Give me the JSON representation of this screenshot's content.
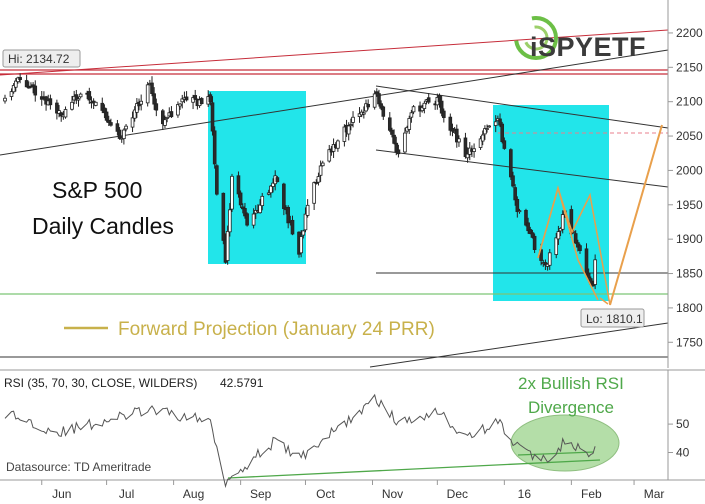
{
  "colors": {
    "highlight": "#22e5ea",
    "projection": "#e9a04c",
    "projection_legend": "#c8b14b",
    "resistance": "#c62d3a",
    "support_green": "#7cc576",
    "divergence": "#4fa84a",
    "lo_line": "#e87f8c",
    "candle_up": "#ffffff",
    "candle_down": "#2a2a2a"
  },
  "overlay_text": {
    "title_line1": "S&P 500",
    "title_line2": "Daily Candles",
    "projection_legend": "Forward Projection (January 24 PRR)",
    "hi_label": "Hi: 2134.72",
    "lo_label": "Lo: 1810.1",
    "rsi_header": "RSI (35, 70, 30, CLOSE, WILDERS)",
    "rsi_value": "42.5791",
    "divergence_line1": "2x Bullish RSI",
    "divergence_line2": "Divergence",
    "datasource": "Datasource: TD Ameritrade",
    "logo_text": "iSPYETF"
  },
  "chart_data": [
    {
      "type": "candlestick",
      "title": "S&P 500 Daily Candles",
      "y_ticks": [
        1750,
        1800,
        1850,
        1900,
        1950,
        2000,
        2050,
        2100,
        2150,
        2200
      ],
      "ylim": [
        1718,
        2230
      ],
      "x_tick_labels": [
        "Jun",
        "Jul",
        "Aug",
        "Sep",
        "Oct",
        "Nov",
        "Dec",
        "16",
        "Feb",
        "Mar"
      ],
      "hi": 2134.72,
      "lo": 1810.1,
      "grid": false,
      "anchors": [
        [
          "2015-05-15",
          2112
        ],
        [
          "2015-05-21",
          2130
        ],
        [
          "2015-05-27",
          2123
        ],
        [
          "2015-06-09",
          2080
        ],
        [
          "2015-06-19",
          2110
        ],
        [
          "2015-06-26",
          2100
        ],
        [
          "2015-07-08",
          2046
        ],
        [
          "2015-07-20",
          2128
        ],
        [
          "2015-07-27",
          2068
        ],
        [
          "2015-08-05",
          2100
        ],
        [
          "2015-08-18",
          2102
        ],
        [
          "2015-08-21",
          1971
        ],
        [
          "2015-08-25",
          1868
        ],
        [
          "2015-08-28",
          1988
        ],
        [
          "2015-09-04",
          1921
        ],
        [
          "2015-09-17",
          1990
        ],
        [
          "2015-09-28",
          1881
        ],
        [
          "2015-10-02",
          1951
        ],
        [
          "2015-10-09",
          2014
        ],
        [
          "2015-10-23",
          2075
        ],
        [
          "2015-11-03",
          2109
        ],
        [
          "2015-11-13",
          2023
        ],
        [
          "2015-11-20",
          2089
        ],
        [
          "2015-12-01",
          2102
        ],
        [
          "2015-12-14",
          2021
        ],
        [
          "2015-12-29",
          2078
        ],
        [
          "2016-01-07",
          1943
        ],
        [
          "2016-01-20",
          1859
        ],
        [
          "2016-01-29",
          1940
        ],
        [
          "2016-02-11",
          1829
        ],
        [
          "2016-02-12",
          1865
        ]
      ]
    },
    {
      "type": "line",
      "title": "RSI (35, 70, 30, CLOSE, WILDERS)",
      "last_value": 42.5791,
      "y_ticks": [
        40,
        50
      ],
      "ylim": [
        26,
        66
      ],
      "x_tick_labels": [
        "Jun",
        "Jul",
        "Aug",
        "Sep",
        "Oct",
        "Nov",
        "Dec",
        "16",
        "Feb",
        "Mar"
      ],
      "anchors": [
        [
          "2015-05-15",
          54
        ],
        [
          "2015-06-09",
          47
        ],
        [
          "2015-07-20",
          55
        ],
        [
          "2015-08-18",
          51
        ],
        [
          "2015-08-25",
          30
        ],
        [
          "2015-09-17",
          44
        ],
        [
          "2015-09-28",
          38
        ],
        [
          "2015-11-03",
          59
        ],
        [
          "2015-11-13",
          50
        ],
        [
          "2015-12-01",
          55
        ],
        [
          "2015-12-14",
          45
        ],
        [
          "2015-12-29",
          51
        ],
        [
          "2016-01-07",
          42
        ],
        [
          "2016-01-20",
          37
        ],
        [
          "2016-01-29",
          44
        ],
        [
          "2016-02-11",
          38
        ],
        [
          "2016-02-12",
          42.58
        ]
      ]
    }
  ]
}
